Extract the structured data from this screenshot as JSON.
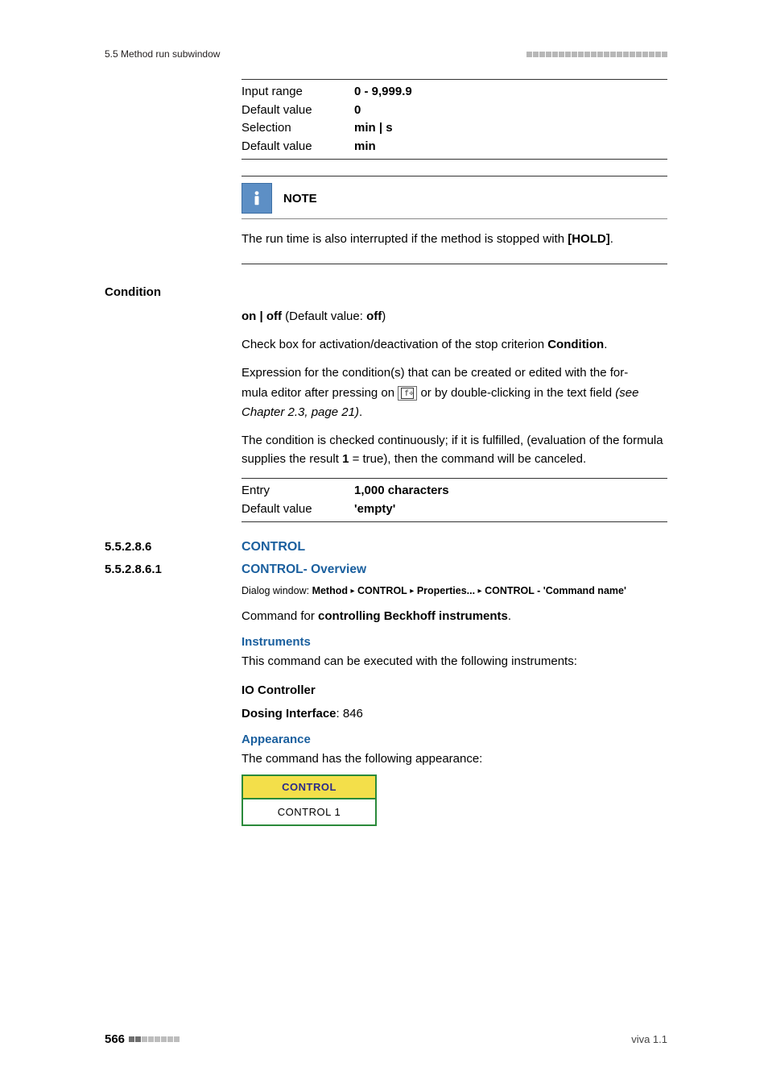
{
  "header": {
    "left": "5.5 Method run subwindow"
  },
  "spec1": {
    "rows": [
      {
        "label": "Input range",
        "value_html": "<b>0 - 9,999.9</b>"
      },
      {
        "label": "Default value",
        "value_html": "<b>0</b>"
      },
      {
        "label": "Selection",
        "value_html": "<b>min | s</b>"
      },
      {
        "label": "Default value",
        "value_html": "<b>min</b>"
      }
    ]
  },
  "note": {
    "title": "NOTE",
    "body_html": "The run time is also interrupted if the method is stopped with <b>[HOLD]</b>."
  },
  "condition": {
    "side_heading": "Condition",
    "p1_html": "<b>on | off</b> (Default value: <b>off</b>)",
    "p2_html": "Check box for activation/deactivation of the stop criterion <b>Condition</b>.",
    "p3a": "Expression for the condition(s) that can be created or edited with the for-",
    "p3b_pre": "mula editor after pressing on ",
    "p3b_post": " or by double-clicking in the text field ",
    "p3b_ref": "(see Chapter 2.3, page 21)",
    "p3b_dot": ".",
    "p4_html": "The condition is checked continuously; if it is fulfilled, (evaluation of the formula supplies the result <b>1</b> = true), then the command will be canceled."
  },
  "spec2": {
    "rows": [
      {
        "label": "Entry",
        "value_html": "<b>1,000 characters</b>"
      },
      {
        "label": "Default value",
        "value_html": "<b>'empty'</b>"
      }
    ]
  },
  "sec1": {
    "num": "5.5.2.8.6",
    "title": "CONTROL"
  },
  "sec2": {
    "num": "5.5.2.8.6.1",
    "title": "CONTROL- Overview",
    "dialog_label": "Dialog window:",
    "dialog_parts": [
      "Method",
      "CONTROL",
      "Properties...",
      "CONTROL - 'Command name'"
    ],
    "p1_html": "Command for <b>controlling Beckhoff instruments</b>.",
    "h_instruments": "Instruments",
    "p2": "This command can be executed with the following instruments:",
    "p3_html": "<b>IO Controller</b>",
    "p4_html": "<b>Dosing Interface</b>: 846",
    "h_appearance": "Appearance",
    "p5": "The command has the following appearance:"
  },
  "control_widget": {
    "head": "CONTROL",
    "body": "CONTROL 1"
  },
  "footer": {
    "page": "566",
    "right": "viva 1.1"
  }
}
